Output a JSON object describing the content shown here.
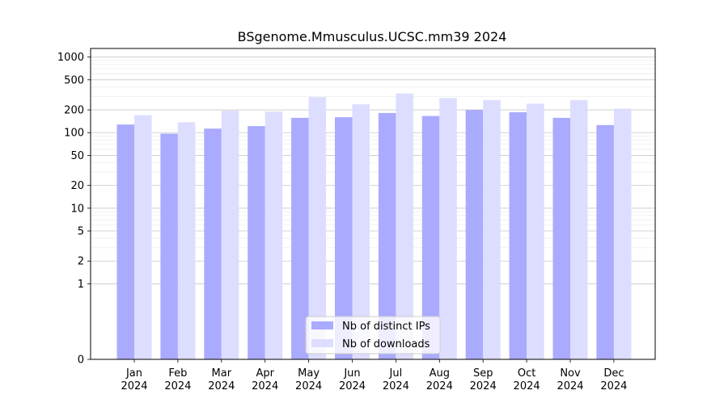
{
  "chart_data": {
    "type": "bar",
    "title": "BSgenome.Mmusculus.UCSC.mm39 2024",
    "xlabel": "",
    "ylabel": "",
    "yscale": "symlog",
    "ylim": [
      0,
      1300
    ],
    "yticks": [
      0,
      1,
      2,
      5,
      10,
      20,
      50,
      100,
      200,
      500,
      1000
    ],
    "ytick_labels": [
      "0",
      "1",
      "2",
      "5",
      "10",
      "20",
      "50",
      "100",
      "200",
      "500",
      "1000"
    ],
    "grid": true,
    "legend_position": "bottom-center",
    "categories": [
      [
        "Jan",
        "2024"
      ],
      [
        "Feb",
        "2024"
      ],
      [
        "Mar",
        "2024"
      ],
      [
        "Apr",
        "2024"
      ],
      [
        "May",
        "2024"
      ],
      [
        "Jun",
        "2024"
      ],
      [
        "Jul",
        "2024"
      ],
      [
        "Aug",
        "2024"
      ],
      [
        "Sep",
        "2024"
      ],
      [
        "Oct",
        "2024"
      ],
      [
        "Nov",
        "2024"
      ],
      [
        "Dec",
        "2024"
      ]
    ],
    "series": [
      {
        "name": "Nb of distinct IPs",
        "color": "#aaaaff",
        "values": [
          128,
          97,
          113,
          122,
          157,
          160,
          182,
          166,
          200,
          186,
          157,
          126
        ]
      },
      {
        "name": "Nb of downloads",
        "color": "#ddddff",
        "values": [
          170,
          137,
          195,
          190,
          295,
          237,
          330,
          287,
          270,
          242,
          270,
          208
        ]
      }
    ]
  }
}
